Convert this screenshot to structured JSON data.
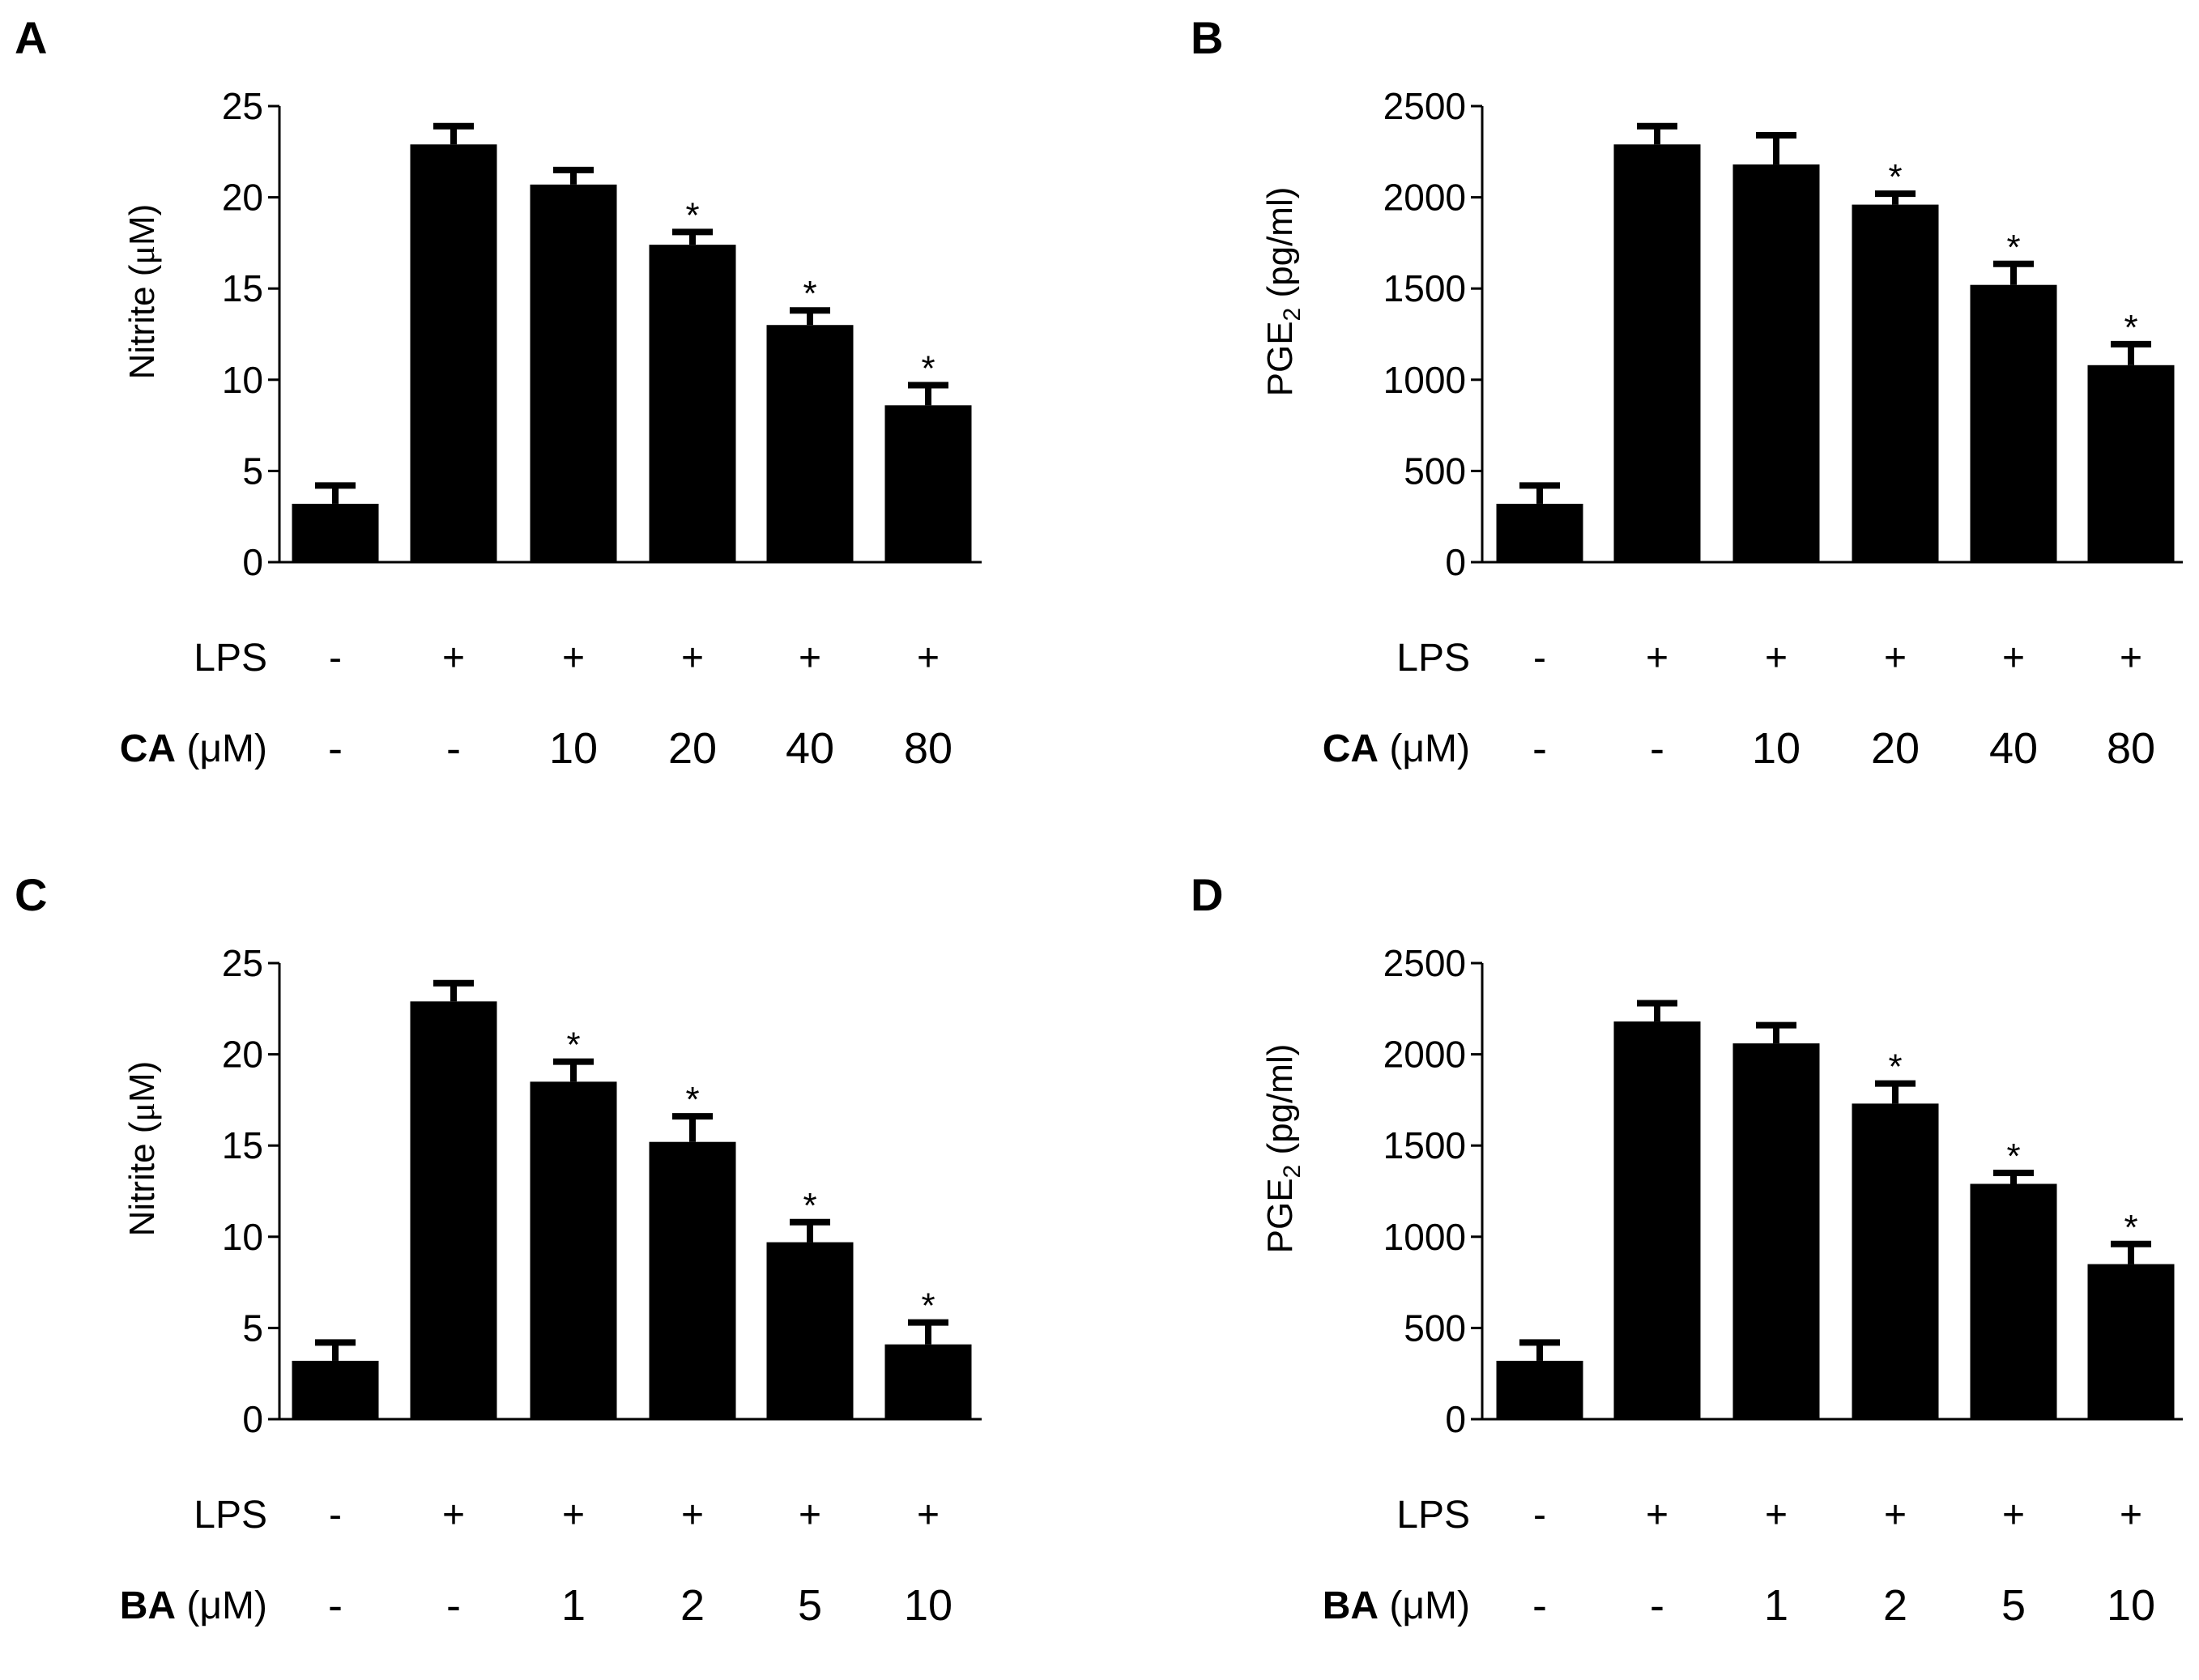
{
  "panels": [
    {
      "id": "A",
      "letter": "A",
      "ylabel_main": "Nitrite (",
      "ylabel_mu": "μ",
      "ylabel_unit": "M)",
      "ylabel_sub": "",
      "ylabel_rest": "",
      "lps_label": "LPS",
      "treatment_name": "CA",
      "treatment_unit": "(μM)",
      "lps_values": [
        "-",
        "+",
        "+",
        "+",
        "+",
        "+"
      ],
      "treatment_values": [
        "-",
        "-",
        "10",
        "20",
        "40",
        "80"
      ]
    },
    {
      "id": "B",
      "letter": "B",
      "ylabel_main": "PGE",
      "ylabel_mu": "",
      "ylabel_unit": "",
      "ylabel_sub": "2",
      "ylabel_rest": " (pg/ml)",
      "lps_label": "LPS",
      "treatment_name": "CA",
      "treatment_unit": "(μM)",
      "lps_values": [
        "-",
        "+",
        "+",
        "+",
        "+",
        "+"
      ],
      "treatment_values": [
        "-",
        "-",
        "10",
        "20",
        "40",
        "80"
      ]
    },
    {
      "id": "C",
      "letter": "C",
      "ylabel_main": "Nitrite (",
      "ylabel_mu": "μ",
      "ylabel_unit": "M)",
      "ylabel_sub": "",
      "ylabel_rest": "",
      "lps_label": "LPS",
      "treatment_name": "BA",
      "treatment_unit": "(μM)",
      "lps_values": [
        "-",
        "+",
        "+",
        "+",
        "+",
        "+"
      ],
      "treatment_values": [
        "-",
        "-",
        "1",
        "2",
        "5",
        "10"
      ]
    },
    {
      "id": "D",
      "letter": "D",
      "ylabel_main": "PGE",
      "ylabel_mu": "",
      "ylabel_unit": "",
      "ylabel_sub": "2",
      "ylabel_rest": " (pg/ml)",
      "lps_label": "LPS",
      "treatment_name": "BA",
      "treatment_unit": "(μM)",
      "lps_values": [
        "-",
        "+",
        "+",
        "+",
        "+",
        "+"
      ],
      "treatment_values": [
        "-",
        "-",
        "1",
        "2",
        "5",
        "10"
      ]
    }
  ],
  "chart_data": [
    {
      "panel": "A",
      "type": "bar",
      "ylabel": "Nitrite (μM)",
      "ylim": [
        0,
        25
      ],
      "yticks": [
        0,
        5,
        10,
        15,
        20,
        25
      ],
      "categories": [
        "LPS - / CA -",
        "LPS + / CA -",
        "LPS + / CA 10",
        "LPS + / CA 20",
        "LPS + / CA 40",
        "LPS + / CA 80"
      ],
      "values": [
        3.2,
        22.9,
        20.7,
        17.4,
        13.0,
        8.6
      ],
      "errors": [
        1.0,
        1.0,
        0.8,
        0.7,
        0.8,
        1.1
      ],
      "significant": [
        false,
        false,
        false,
        true,
        true,
        true
      ],
      "annotation": "*"
    },
    {
      "panel": "B",
      "type": "bar",
      "ylabel": "PGE2 (pg/ml)",
      "ylim": [
        0,
        2500
      ],
      "yticks": [
        0,
        500,
        1000,
        1500,
        2000,
        2500
      ],
      "categories": [
        "LPS - / CA -",
        "LPS + / CA -",
        "LPS + / CA 10",
        "LPS + / CA 20",
        "LPS + / CA 40",
        "LPS + / CA 80"
      ],
      "values": [
        320,
        2290,
        2180,
        1960,
        1520,
        1080
      ],
      "errors": [
        100,
        100,
        160,
        60,
        115,
        115
      ],
      "significant": [
        false,
        false,
        false,
        true,
        true,
        true
      ],
      "annotation": "*"
    },
    {
      "panel": "C",
      "type": "bar",
      "ylabel": "Nitrite (μM)",
      "ylim": [
        0,
        25
      ],
      "yticks": [
        0,
        5,
        10,
        15,
        20,
        25
      ],
      "categories": [
        "LPS - / BA -",
        "LPS + / BA -",
        "LPS + / BA 1",
        "LPS + / BA 2",
        "LPS + / BA 5",
        "LPS + / BA 10"
      ],
      "values": [
        3.2,
        22.9,
        18.5,
        15.2,
        9.7,
        4.1
      ],
      "errors": [
        1.0,
        1.0,
        1.1,
        1.4,
        1.1,
        1.2
      ],
      "significant": [
        false,
        false,
        true,
        true,
        true,
        true
      ],
      "annotation": "*"
    },
    {
      "panel": "D",
      "type": "bar",
      "ylabel": "PGE2 (pg/ml)",
      "ylim": [
        0,
        2500
      ],
      "yticks": [
        0,
        500,
        1000,
        1500,
        2000,
        2500
      ],
      "categories": [
        "LPS - / BA -",
        "LPS + / BA -",
        "LPS + / BA 1",
        "LPS + / BA 2",
        "LPS + / BA 5",
        "LPS + / BA 10"
      ],
      "values": [
        320,
        2180,
        2060,
        1730,
        1290,
        850
      ],
      "errors": [
        100,
        100,
        100,
        110,
        60,
        110
      ],
      "significant": [
        false,
        false,
        false,
        true,
        true,
        true
      ],
      "annotation": "*"
    }
  ]
}
